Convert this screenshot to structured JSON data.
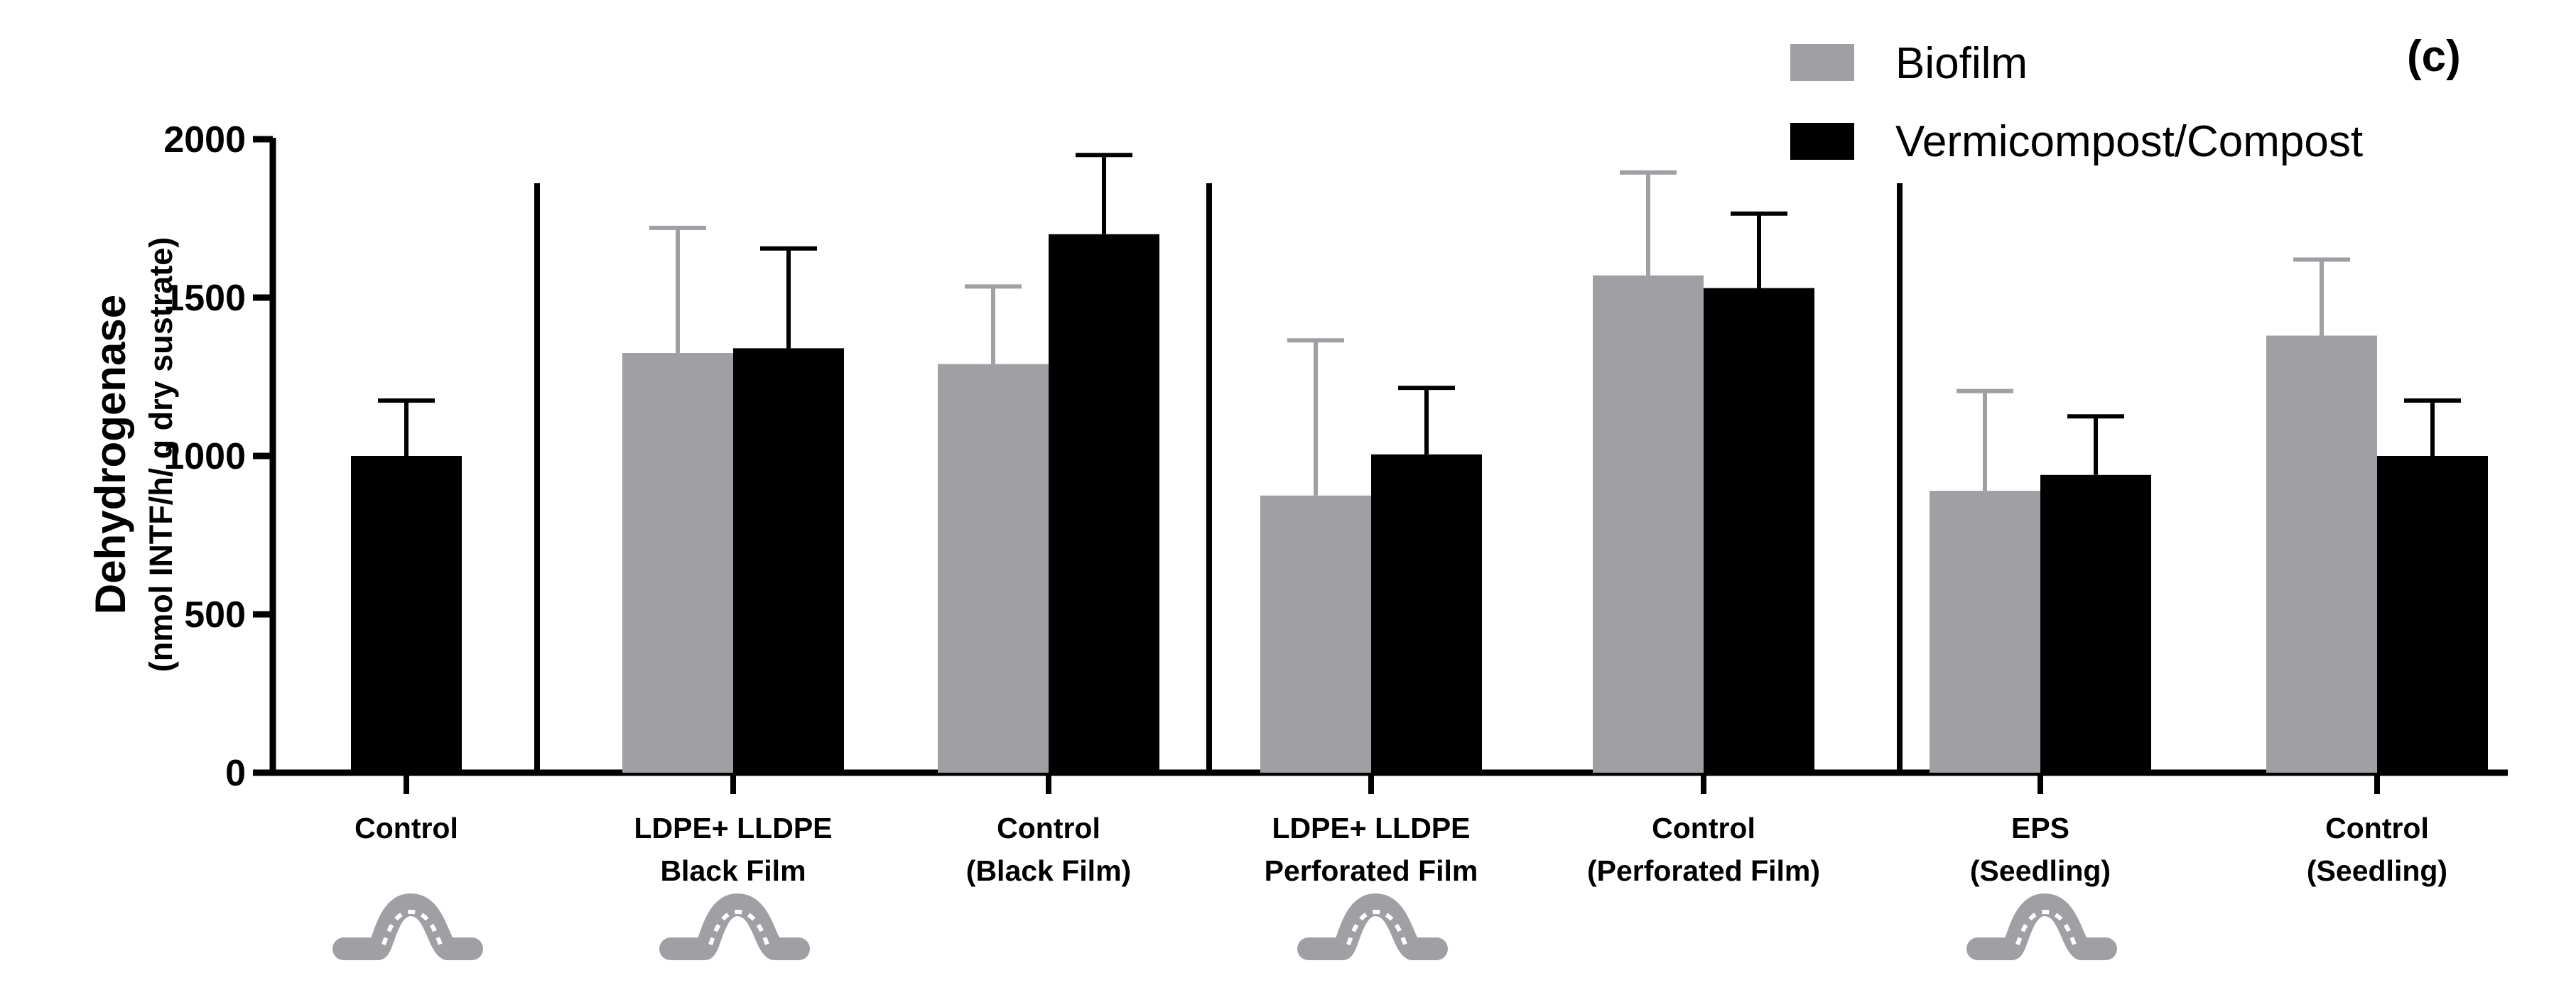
{
  "chart_data": {
    "type": "bar",
    "panel_label": "(c)",
    "ylabel": "Dehydrogenase",
    "ylabel_sub": "(nmol INTF/h/ g dry sustrate)",
    "ylim": [
      0,
      2000
    ],
    "yticks": [
      "0",
      "500",
      "1000",
      "1500",
      "2000"
    ],
    "categories": [
      {
        "line1": "Control",
        "line2": "",
        "worm": true
      },
      {
        "line1": "LDPE+ LLDPE",
        "line2": "Black Film",
        "worm": true
      },
      {
        "line1": "Control",
        "line2": "(Black Film)",
        "worm": false
      },
      {
        "line1": "LDPE+ LLDPE",
        "line2": "Perforated Film",
        "worm": true
      },
      {
        "line1": "Control",
        "line2": "(Perforated Film)",
        "worm": false
      },
      {
        "line1": "EPS",
        "line2": "(Seedling)",
        "worm": true
      },
      {
        "line1": "Control",
        "line2": "(Seedling)",
        "worm": false
      }
    ],
    "series": [
      {
        "name": "Biofilm",
        "color": "#a0a0a4",
        "values": [
          null,
          1325,
          1290,
          875,
          1570,
          890,
          1380
        ],
        "errors": [
          null,
          395,
          245,
          490,
          325,
          315,
          240
        ]
      },
      {
        "name": "Vermicompost/Compost",
        "color": "#000000",
        "values": [
          1000,
          1340,
          1700,
          1005,
          1530,
          940,
          1000
        ],
        "errors": [
          175,
          315,
          250,
          210,
          235,
          185,
          175
        ]
      }
    ],
    "group_separators_after": [
      0,
      2,
      4
    ],
    "legend_position": "top-right"
  }
}
